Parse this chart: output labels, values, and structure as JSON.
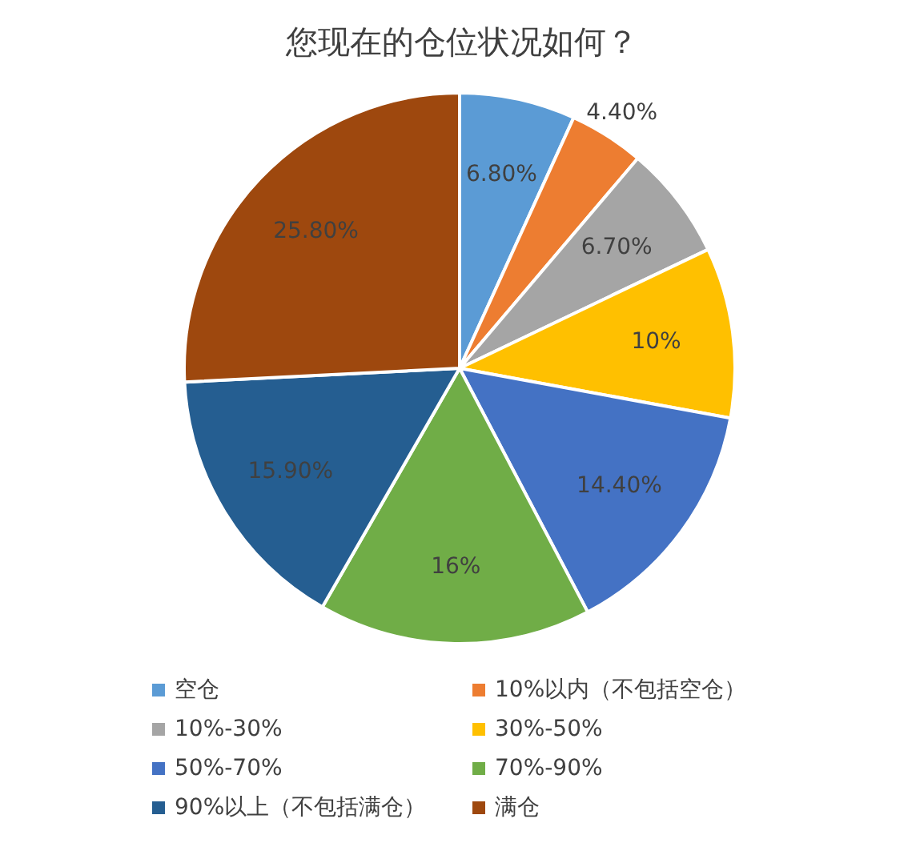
{
  "chart_data": {
    "type": "pie",
    "title": "您现在的仓位状况如何？",
    "categories": [
      "空仓",
      "10%以内（不包括空仓）",
      "10%-30%",
      "30%-50%",
      "50%-70%",
      "70%-90%",
      "90%以上（不包括满仓）",
      "满仓"
    ],
    "values": [
      6.8,
      4.4,
      6.7,
      10,
      14.4,
      16,
      15.9,
      25.8
    ],
    "value_labels": [
      "6.80%",
      "4.40%",
      "6.70%",
      "10%",
      "14.40%",
      "16%",
      "15.90%",
      "25.80%"
    ],
    "colors": [
      "#5b9bd5",
      "#ed7d31",
      "#a5a5a5",
      "#ffc000",
      "#4472c4",
      "#70ad47",
      "#255e91",
      "#9e480e"
    ],
    "legend": "bottom"
  }
}
